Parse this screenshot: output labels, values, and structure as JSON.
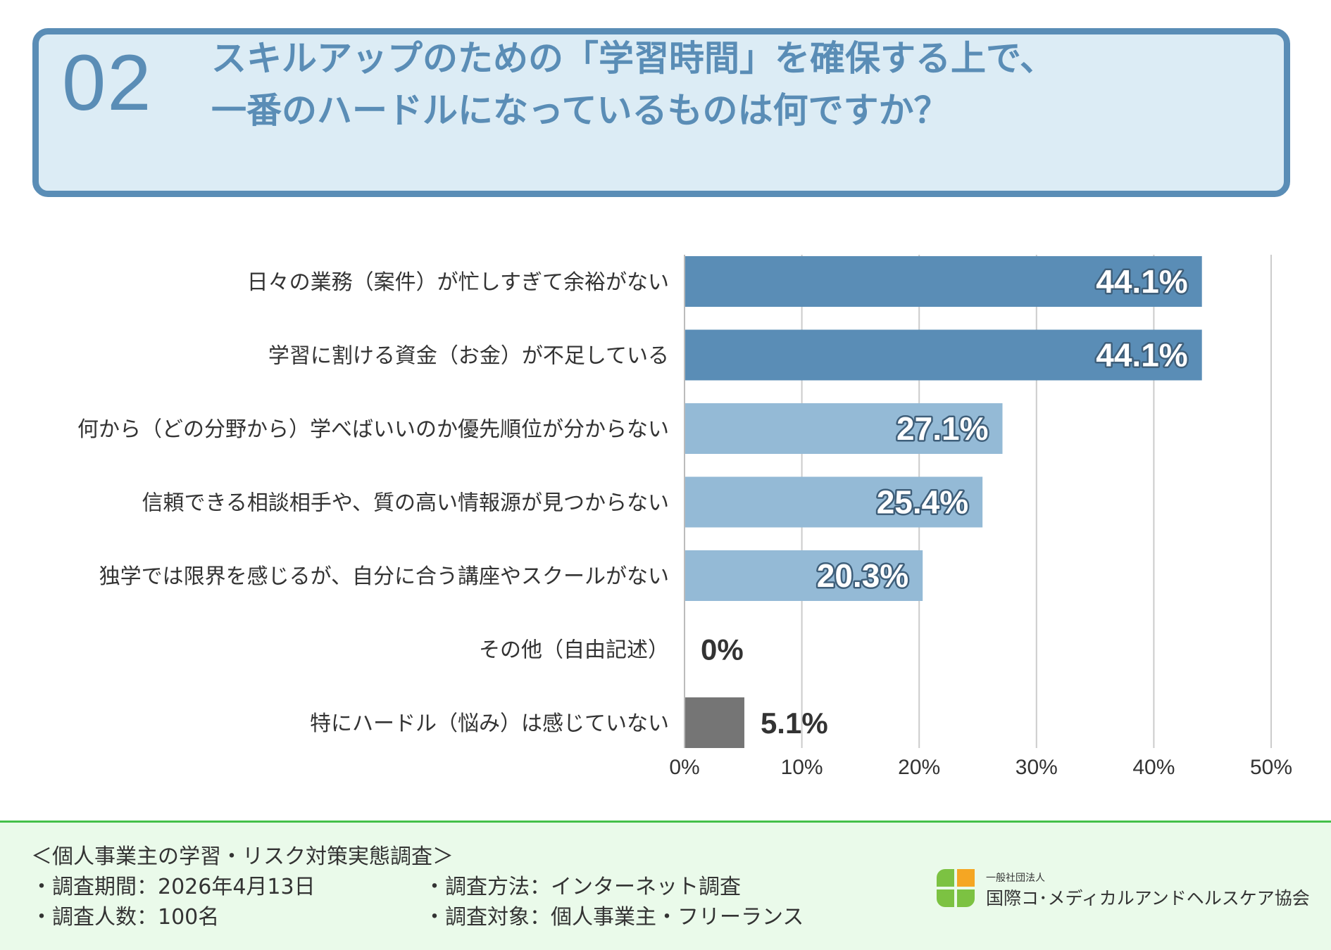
{
  "header": {
    "number": "02",
    "title_line1": "スキルアップのための「学習時間」を確保する上で、",
    "title_line2": "一番のハードルになっているものは何ですか？"
  },
  "colors": {
    "accent": "#5a8db6",
    "bar_dark": "#5a8db6",
    "bar_light": "#94bad6",
    "bar_gray": "#757575",
    "footer_bg": "#eafaea",
    "footer_border": "#44c04a"
  },
  "chart_data": {
    "type": "bar",
    "orientation": "horizontal",
    "categories": [
      "日々の業務（案件）が忙しすぎて余裕がない",
      "学習に割ける資金（お金）が不足している",
      "何から（どの分野から）学べばいいのか優先順位が分からない",
      "信頼できる相談相手や、質の高い情報源が見つからない",
      "独学では限界を感じるが、自分に合う講座やスクールがない",
      "その他（自由記述）",
      "特にハードル（悩み）は感じていない"
    ],
    "values": [
      44.1,
      44.1,
      27.1,
      25.4,
      20.3,
      0,
      5.1
    ],
    "labels": [
      "44.1%",
      "44.1%",
      "27.1%",
      "25.4%",
      "20.3%",
      "0%",
      "5.1%"
    ],
    "bar_colors": [
      "#5a8db6",
      "#5a8db6",
      "#94bad6",
      "#94bad6",
      "#94bad6",
      "#94bad6",
      "#757575"
    ],
    "label_inside": [
      true,
      true,
      true,
      true,
      true,
      false,
      false
    ],
    "xlim": [
      0,
      50
    ],
    "xticks": [
      0,
      10,
      20,
      30,
      40,
      50
    ],
    "xtick_labels": [
      "0%",
      "10%",
      "20%",
      "30%",
      "40%",
      "50%"
    ],
    "grid": true
  },
  "footer": {
    "survey_title": "＜個人事業主の学習・リスク対策実態調査＞",
    "period": "・調査期間：2026年4月13日",
    "respondents": "・調査人数：100名",
    "method": "・調査方法：インターネット調査",
    "target": "・調査対象：個人事業主・フリーランス",
    "org_small": "一般社団法人",
    "org_name": "国際コ･メディカルアンドヘルスケア協会",
    "logo_colors": [
      "#f5a623",
      "#7cc242",
      "#7cc242",
      "#7cc242"
    ]
  }
}
